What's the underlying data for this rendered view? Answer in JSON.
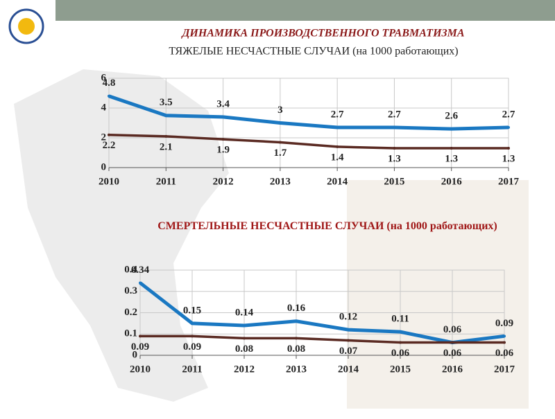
{
  "chart_data": [
    {
      "type": "line",
      "title": "ДИНАМИКА ПРОИЗВОДСТВЕННОГО ТРАВМАТИЗМА",
      "subtitle": "ТЯЖЕЛЫЕ НЕСЧАСТНЫЕ СЛУЧАИ (на 1000 работающих)",
      "categories": [
        "2010",
        "2011",
        "2012",
        "2013",
        "2014",
        "2015",
        "2016",
        "2017"
      ],
      "series": [
        {
          "color": "#1a78c2",
          "values": [
            4.8,
            3.5,
            3.4,
            3,
            2.7,
            2.7,
            2.6,
            2.7
          ]
        },
        {
          "color": "#5a2a22",
          "values": [
            2.2,
            2.1,
            1.9,
            1.7,
            1.4,
            1.3,
            1.3,
            1.3
          ]
        }
      ],
      "ylim": [
        0,
        6
      ],
      "yticks": [
        0,
        2,
        4,
        6
      ],
      "grid": true
    },
    {
      "type": "line",
      "title": "СМЕРТЕЛЬНЫЕ НЕСЧАСТНЫЕ СЛУЧАИ (на 1000 работающих)",
      "categories": [
        "2010",
        "2011",
        "2012",
        "2013",
        "2014",
        "2015",
        "2016",
        "2017"
      ],
      "series": [
        {
          "color": "#1a78c2",
          "values": [
            0.34,
            0.15,
            0.14,
            0.16,
            0.12,
            0.11,
            0.06,
            0.09
          ]
        },
        {
          "color": "#5a2a22",
          "values": [
            0.09,
            0.09,
            0.08,
            0.08,
            0.07,
            0.06,
            0.06,
            0.06
          ]
        }
      ],
      "ylim": [
        0,
        0.4
      ],
      "yticks": [
        0,
        0.1,
        0.2,
        0.3,
        0.4
      ],
      "grid": true
    }
  ]
}
